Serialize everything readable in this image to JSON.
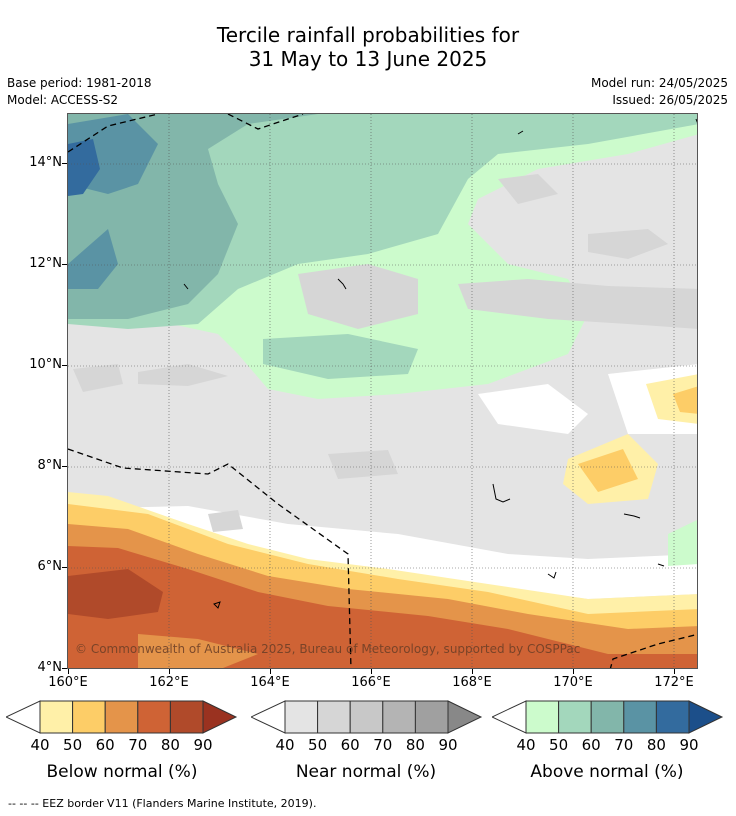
{
  "title_line1": "Tercile rainfall probabilities for",
  "title_line2": "31 May to 13 June 2025",
  "base_period": "Base period: 1981-2018",
  "model": "Model: ACCESS-S2",
  "model_run": "Model run: 24/05/2025",
  "issued": "Issued: 26/05/2025",
  "copyright": "© Commonwealth of Australia 2025, Bureau of Meteorology, supported by COSPPac",
  "lat_labels": [
    "14°N",
    "12°N",
    "10°N",
    "8°N",
    "6°N",
    "4°N"
  ],
  "lon_labels": [
    "160°E",
    "162°E",
    "164°E",
    "166°E",
    "168°E",
    "170°E",
    "172°E"
  ],
  "colorbars": [
    {
      "label": "Below normal (%)",
      "ticks": [
        "40",
        "50",
        "60",
        "70",
        "80",
        "90"
      ],
      "colors": [
        "#ffffff",
        "#fff0a8",
        "#fdcd67",
        "#e4944a",
        "#cf6335",
        "#b04a2a",
        "#9a3220"
      ]
    },
    {
      "label": "Near normal (%)",
      "ticks": [
        "40",
        "50",
        "60",
        "70",
        "80",
        "90"
      ],
      "colors": [
        "#ffffff",
        "#e4e4e4",
        "#d6d6d6",
        "#c8c8c8",
        "#b4b4b4",
        "#a0a0a0",
        "#888888"
      ]
    },
    {
      "label": "Above normal (%)",
      "ticks": [
        "40",
        "50",
        "60",
        "70",
        "80",
        "90"
      ],
      "colors": [
        "#ffffff",
        "#ccfbcc",
        "#a3d7bc",
        "#82b6aa",
        "#5a93a4",
        "#336b9e",
        "#1c4f8a"
      ]
    }
  ],
  "footer": "--  --  -- EEZ border V11 (Flanders Marine Institute, 2019)."
}
